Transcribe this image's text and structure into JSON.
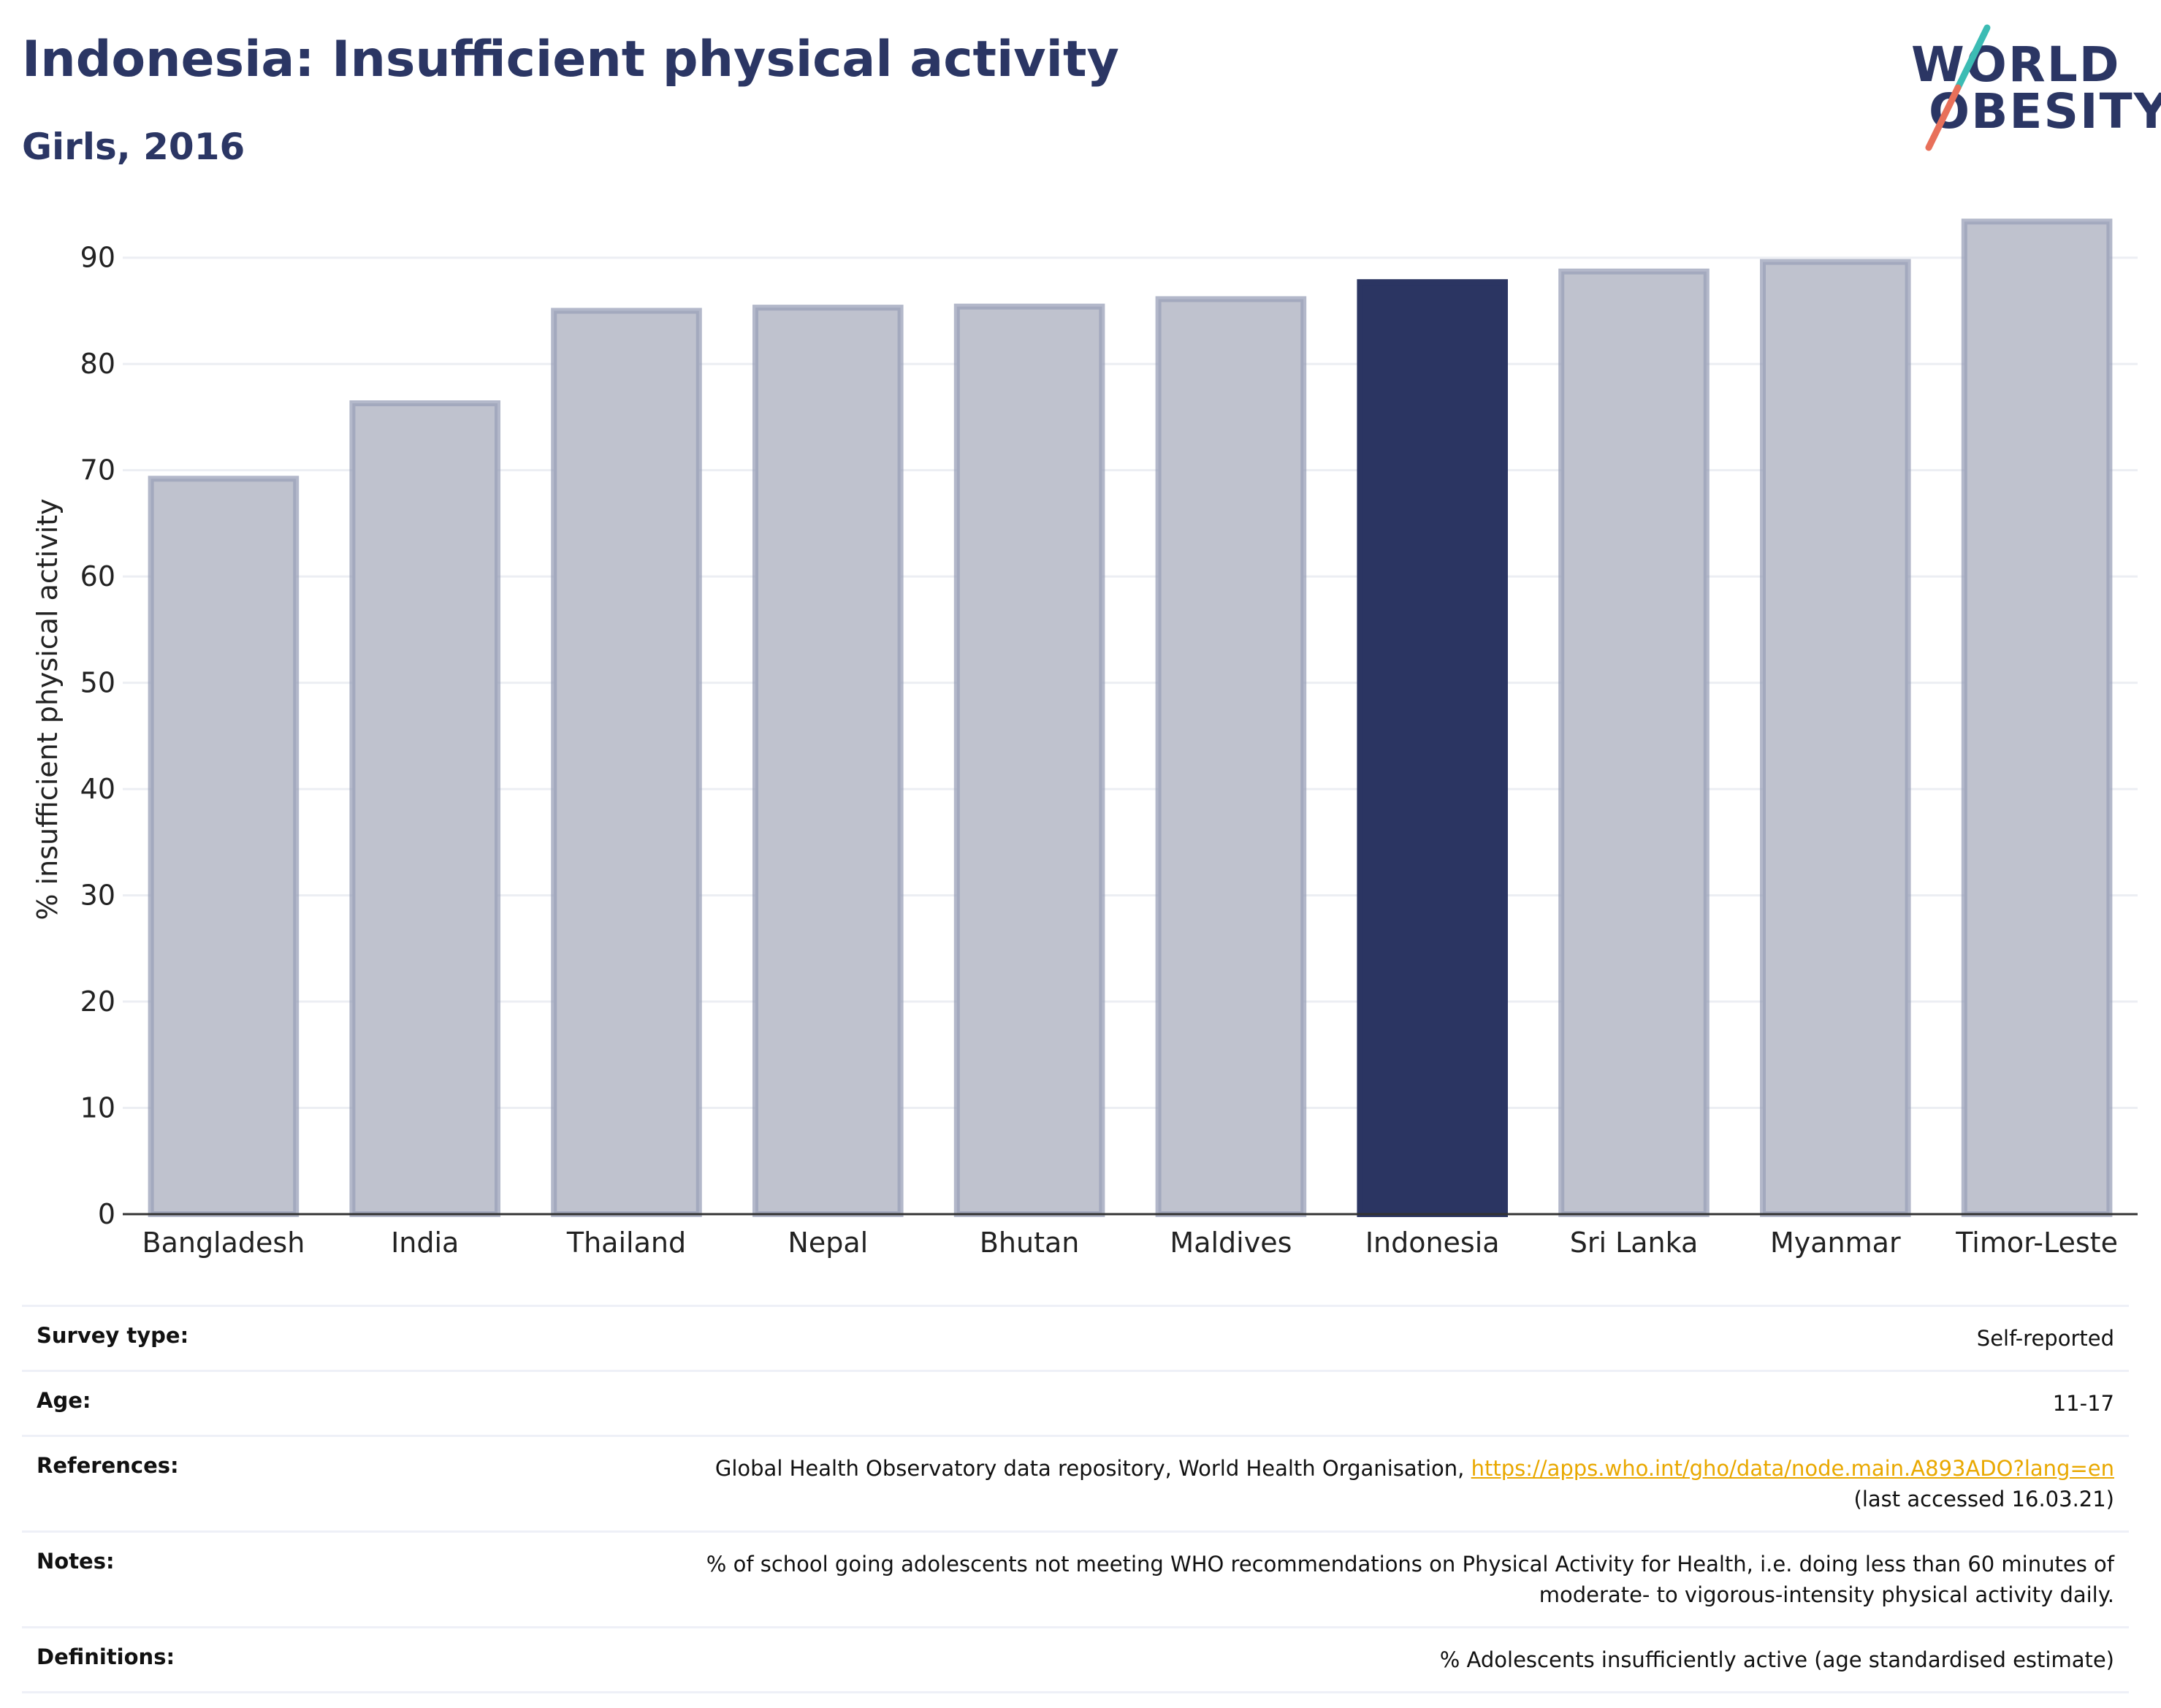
{
  "header": {
    "title": "Indonesia: Insufficient physical activity",
    "subtitle": "Girls, 2016"
  },
  "logo": {
    "line1": "WORLD",
    "line2": "OBESITY",
    "slash_colors": [
      "#3cbcb4",
      "#e8705a"
    ]
  },
  "chart_data": {
    "type": "bar",
    "categories": [
      "Bangladesh",
      "India",
      "Thailand",
      "Nepal",
      "Bhutan",
      "Maldives",
      "Indonesia",
      "Sri Lanka",
      "Myanmar",
      "Timor-Leste"
    ],
    "values": [
      69.2,
      76.3,
      85.0,
      85.3,
      85.4,
      86.1,
      87.7,
      88.7,
      89.6,
      93.4
    ],
    "highlight": "Indonesia",
    "ylabel": "% insufficient physical activity",
    "xlabel": "",
    "ylim": [
      0,
      95
    ],
    "yticks": [
      0,
      10,
      20,
      30,
      40,
      50,
      60,
      70,
      80,
      90
    ],
    "grid": true,
    "colors": {
      "bar": "#bfc2ce",
      "bar_edge": "#9aa0b8",
      "highlight": "#2b3562",
      "grid": "#eceef3",
      "axis": "#333333"
    }
  },
  "info_table": [
    {
      "label": "Survey type:",
      "value": "Self-reported"
    },
    {
      "label": "Age:",
      "value": "11-17"
    },
    {
      "label": "References:",
      "value": "Global Health Observatory data repository, World Health Organisation, ",
      "link": "https://apps.who.int/gho/data/node.main.A893ADO?lang=en",
      "value2": "(last accessed 16.03.21)"
    },
    {
      "label": "Notes:",
      "value": "% of school going adolescents not meeting WHO recommendations on Physical Activity for Health, i.e. doing less than 60 minutes of",
      "value2": "moderate- to vigorous-intensity physical activity daily."
    },
    {
      "label": "Definitions:",
      "value": "% Adolescents insufficiently active (age standardised estimate)"
    }
  ]
}
